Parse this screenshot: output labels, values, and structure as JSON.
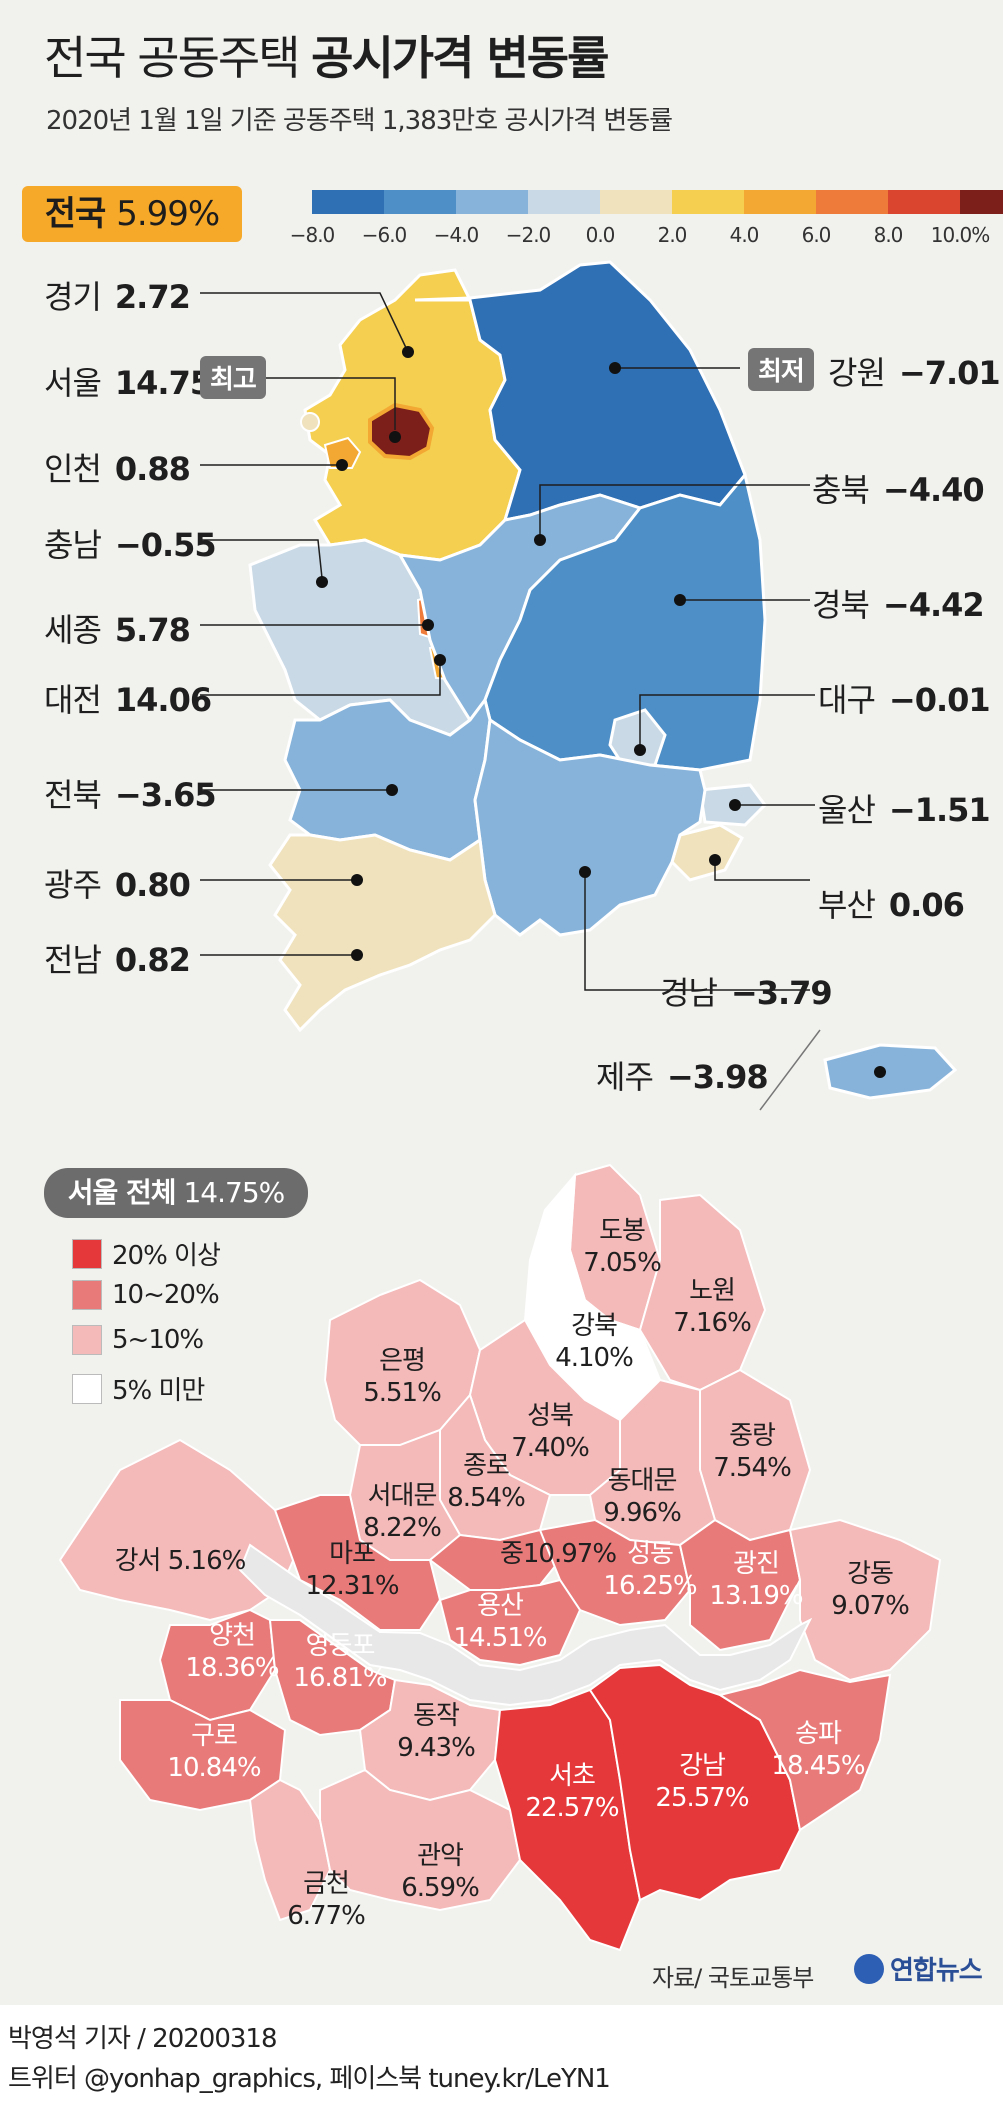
{
  "title": {
    "light": "전국 공동주택 ",
    "bold": "공시가격 변동률"
  },
  "subtitle": "2020년 1월 1일 기준 공동주택 1,383만호 공시가격 변동률",
  "national": {
    "label": "전국",
    "value": "5.99%"
  },
  "legend": {
    "colors": [
      "#2f6fb3",
      "#4e8fc7",
      "#87b3da",
      "#c9d9e5",
      "#efe2bd",
      "#f4cf50",
      "#f2a832",
      "#ef7b3a",
      "#d9452f",
      "#7c1e1a"
    ],
    "ticks": [
      "−8.0",
      "−6.0",
      "−4.0",
      "−2.0",
      "0.0",
      "2.0",
      "4.0",
      "6.0",
      "8.0",
      "10.0%"
    ]
  },
  "tags": {
    "highest": "최고",
    "lowest": "최저"
  },
  "regions": [
    {
      "name": "경기",
      "value": "2.72"
    },
    {
      "name": "서울",
      "value": "14.75"
    },
    {
      "name": "인천",
      "value": "0.88"
    },
    {
      "name": "충남",
      "value": "−0.55"
    },
    {
      "name": "세종",
      "value": "5.78"
    },
    {
      "name": "대전",
      "value": "14.06"
    },
    {
      "name": "전북",
      "value": "−3.65"
    },
    {
      "name": "광주",
      "value": "0.80"
    },
    {
      "name": "전남",
      "value": "0.82"
    },
    {
      "name": "강원",
      "value": "−7.01"
    },
    {
      "name": "충북",
      "value": "−4.40"
    },
    {
      "name": "경북",
      "value": "−4.42"
    },
    {
      "name": "대구",
      "value": "−0.01"
    },
    {
      "name": "울산",
      "value": "−1.51"
    },
    {
      "name": "부산",
      "value": "0.06"
    },
    {
      "name": "경남",
      "value": "−3.79"
    },
    {
      "name": "제주",
      "value": "−3.98"
    }
  ],
  "seoul": {
    "badge_label": "서울 전체",
    "badge_value": "14.75%",
    "legend": [
      {
        "label": "20% 이상",
        "color": "#e5383b"
      },
      {
        "label": "10~20%",
        "color": "#e87a7a"
      },
      {
        "label": "5~10%",
        "color": "#f4b9b9"
      },
      {
        "label": "5% 미만",
        "color": "#ffffff"
      }
    ],
    "districts": [
      {
        "name": "도봉",
        "value": "7.05%"
      },
      {
        "name": "노원",
        "value": "7.16%"
      },
      {
        "name": "강북",
        "value": "4.10%"
      },
      {
        "name": "은평",
        "value": "5.51%"
      },
      {
        "name": "성북",
        "value": "7.40%"
      },
      {
        "name": "중랑",
        "value": "7.54%"
      },
      {
        "name": "종로",
        "value": "8.54%"
      },
      {
        "name": "서대문",
        "value": "8.22%"
      },
      {
        "name": "동대문",
        "value": "9.96%"
      },
      {
        "name": "강서",
        "value": "5.16%"
      },
      {
        "name": "마포",
        "value": "12.31%"
      },
      {
        "name": "중",
        "value": "10.97%"
      },
      {
        "name": "성동",
        "value": "16.25%"
      },
      {
        "name": "광진",
        "value": "13.19%"
      },
      {
        "name": "강동",
        "value": "9.07%"
      },
      {
        "name": "양천",
        "value": "18.36%"
      },
      {
        "name": "영등포",
        "value": "16.81%"
      },
      {
        "name": "용산",
        "value": "14.51%"
      },
      {
        "name": "송파",
        "value": "18.45%"
      },
      {
        "name": "구로",
        "value": "10.84%"
      },
      {
        "name": "동작",
        "value": "9.43%"
      },
      {
        "name": "서초",
        "value": "22.57%"
      },
      {
        "name": "강남",
        "value": "25.57%"
      },
      {
        "name": "금천",
        "value": "6.77%"
      },
      {
        "name": "관악",
        "value": "6.59%"
      }
    ]
  },
  "source": "자료/ 국토교통부",
  "logo": "연합뉴스",
  "credit": {
    "line1": "박영석 기자 /  20200318",
    "line2": "트위터 @yonhap_graphics, 페이스북 tuney.kr/LeYN1"
  }
}
